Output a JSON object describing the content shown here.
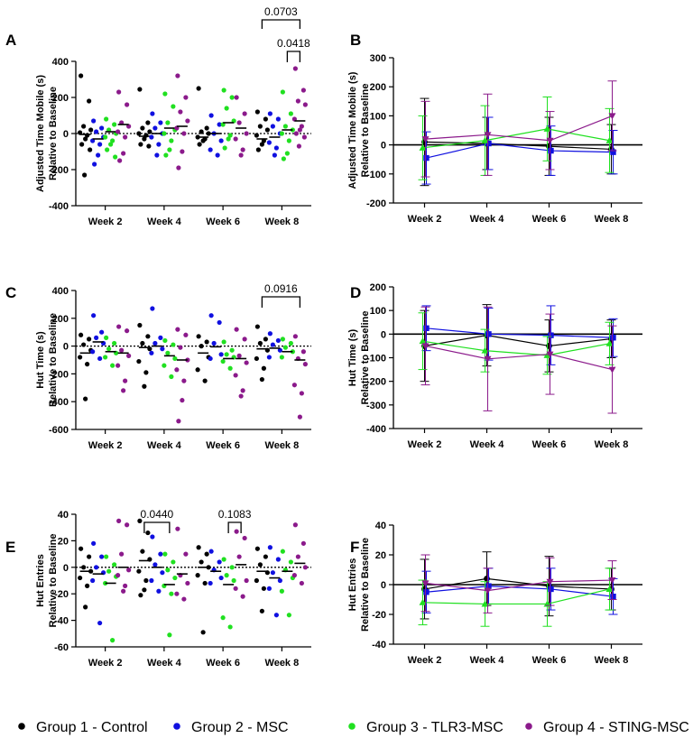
{
  "colors": {
    "group1": "#000000",
    "group2": "#1010e0",
    "group3": "#20e020",
    "group4": "#8b1a8b",
    "text": "#000000"
  },
  "legend": [
    {
      "label": "Group 1 - Control",
      "color_key": "group1"
    },
    {
      "label": "Group 2 - MSC",
      "color_key": "group2"
    },
    {
      "label": "Group 3 - TLR3-MSC",
      "color_key": "group3"
    },
    {
      "label": "Group 4 - STING-MSC",
      "color_key": "group4"
    }
  ],
  "chart_data": [
    {
      "panel": "A",
      "type": "scatter",
      "ylabel": [
        "Adjusted Time Mobile (s)",
        "Relative to Baseline"
      ],
      "categories": [
        "Week 2",
        "Week 4",
        "Week 6",
        "Week 8"
      ],
      "ylim": [
        -400,
        400
      ],
      "yticks": [
        -400,
        -200,
        0,
        200,
        400
      ],
      "zero_line": "dotted",
      "series": [
        {
          "name": "Group 1 - Control",
          "points": [
            [
              320,
              180,
              40,
              20,
              5,
              -10,
              -30,
              -60,
              -90,
              -230
            ],
            [
              245,
              60,
              30,
              10,
              0,
              -10,
              -30,
              -60,
              -70
            ],
            [
              250,
              30,
              10,
              0,
              -20,
              -30,
              -40,
              -60
            ],
            [
              120,
              80,
              40,
              20,
              -10,
              -40,
              -60,
              -90
            ]
          ],
          "means": [
            -5,
            -15,
            -20,
            -30
          ]
        },
        {
          "name": "Group 2 - MSC",
          "points": [
            [
              70,
              30,
              10,
              -20,
              -40,
              -60,
              -120,
              -170
            ],
            [
              110,
              60,
              30,
              0,
              -20,
              -60,
              -120
            ],
            [
              100,
              50,
              0,
              -40,
              -90,
              -120
            ],
            [
              110,
              80,
              40,
              0,
              -50,
              -80,
              -120
            ]
          ],
          "means": [
            -30,
            0,
            0,
            -20
          ]
        },
        {
          "name": "Group 3 - TLR3-MSC",
          "points": [
            [
              80,
              50,
              20,
              0,
              -20,
              -40,
              -60,
              -90,
              -130
            ],
            [
              220,
              150,
              60,
              20,
              0,
              -40,
              -90,
              -120
            ],
            [
              240,
              200,
              140,
              70,
              50,
              -10,
              -30,
              -80
            ],
            [
              230,
              110,
              40,
              20,
              0,
              -40,
              -110,
              -140
            ]
          ],
          "means": [
            10,
            30,
            60,
            20
          ]
        },
        {
          "name": "Group 4 - STING-MSC",
          "points": [
            [
              230,
              160,
              60,
              40,
              10,
              -20,
              -110,
              -150
            ],
            [
              320,
              200,
              120,
              70,
              30,
              0,
              -100,
              -190
            ],
            [
              200,
              110,
              60,
              0,
              -30,
              -90,
              -120
            ],
            [
              360,
              240,
              180,
              160,
              80,
              40,
              20,
              0,
              -20,
              -70
            ]
          ],
          "means": [
            50,
            40,
            30,
            70
          ]
        }
      ],
      "brackets": [
        {
          "label": "0.0703",
          "from_group": 1,
          "to_group": 4,
          "category": "Week 8"
        },
        {
          "label": "0.0418",
          "from_group": 3,
          "to_group": 4,
          "category": "Week 8"
        }
      ]
    },
    {
      "panel": "B",
      "type": "line",
      "ylabel": [
        "Adjusted Time Mobile (s)",
        "Relative to Baseline"
      ],
      "categories": [
        "Week 2",
        "Week 4",
        "Week 6",
        "Week 8"
      ],
      "ylim": [
        -200,
        300
      ],
      "yticks": [
        -200,
        -100,
        0,
        100,
        200,
        300
      ],
      "series": [
        {
          "name": "Group 1 - Control",
          "values": [
            10,
            5,
            -5,
            -15
          ],
          "err": [
            150,
            90,
            100,
            85
          ]
        },
        {
          "name": "Group 2 - MSC",
          "values": [
            -45,
            5,
            -20,
            -25
          ],
          "err": [
            90,
            90,
            85,
            75
          ]
        },
        {
          "name": "Group 3 - TLR3-MSC",
          "values": [
            -10,
            15,
            55,
            15
          ],
          "err": [
            110,
            120,
            110,
            110
          ]
        },
        {
          "name": "Group 4 - STING-MSC",
          "values": [
            20,
            35,
            15,
            100
          ],
          "err": [
            130,
            140,
            100,
            120
          ]
        }
      ]
    },
    {
      "panel": "C",
      "type": "scatter",
      "ylabel": [
        "Hut Time (s)",
        "Relative to Baseline"
      ],
      "categories": [
        "Week 2",
        "Week 4",
        "Week 6",
        "Week 8"
      ],
      "ylim": [
        -600,
        400
      ],
      "yticks": [
        -600,
        -400,
        -200,
        0,
        200,
        400
      ],
      "zero_line": "dotted",
      "series": [
        {
          "name": "Group 1 - Control",
          "points": [
            [
              80,
              50,
              10,
              -30,
              -80,
              -130,
              -380
            ],
            [
              150,
              70,
              20,
              -20,
              -110,
              -190,
              -290
            ],
            [
              70,
              30,
              0,
              -80,
              -170,
              -250
            ],
            [
              140,
              50,
              20,
              -30,
              -90,
              -160,
              -240
            ]
          ],
          "means": [
            -50,
            -10,
            -50,
            -20
          ]
        },
        {
          "name": "Group 2 - MSC",
          "points": [
            [
              220,
              100,
              60,
              20,
              -40,
              -90
            ],
            [
              270,
              60,
              20,
              -20,
              -50
            ],
            [
              220,
              170,
              20,
              -60,
              -90
            ],
            [
              90,
              40,
              10,
              -30,
              -80
            ]
          ],
          "means": [
            30,
            0,
            -5,
            -15
          ]
        },
        {
          "name": "Group 3 - TLR3-MSC",
          "points": [
            [
              60,
              20,
              -20,
              -50,
              -80,
              -140
            ],
            [
              40,
              10,
              -50,
              -90,
              -140,
              -220
            ],
            [
              30,
              -30,
              -60,
              -80,
              -110,
              -160
            ],
            [
              50,
              20,
              -10,
              -40,
              -80
            ]
          ],
          "means": [
            -40,
            -70,
            -90,
            -40
          ]
        },
        {
          "name": "Group 4 - STING-MSC",
          "points": [
            [
              140,
              110,
              -30,
              -70,
              -140,
              -250,
              -320
            ],
            [
              120,
              80,
              -10,
              -100,
              -170,
              -250,
              -390,
              -540
            ],
            [
              120,
              50,
              -70,
              -120,
              -210,
              -320,
              -360
            ],
            [
              70,
              -40,
              -90,
              -130,
              -280,
              -340,
              -510
            ]
          ],
          "means": [
            -50,
            -100,
            -90,
            -100
          ]
        }
      ],
      "brackets": [
        {
          "label": "0.0916",
          "from_group": 1,
          "to_group": 4,
          "category": "Week 8"
        }
      ]
    },
    {
      "panel": "D",
      "type": "line",
      "ylabel": [
        "Hut Time (s)",
        "Relative to Baseline"
      ],
      "categories": [
        "Week 2",
        "Week 4",
        "Week 6",
        "Week 8"
      ],
      "ylim": [
        -400,
        200
      ],
      "yticks": [
        -400,
        -300,
        -200,
        -100,
        0,
        100,
        200
      ],
      "series": [
        {
          "name": "Group 1 - Control",
          "values": [
            -50,
            -5,
            -50,
            -20
          ],
          "err": [
            150,
            130,
            110,
            80
          ]
        },
        {
          "name": "Group 2 - MSC",
          "values": [
            25,
            0,
            -5,
            -15
          ],
          "err": [
            95,
            110,
            125,
            80
          ]
        },
        {
          "name": "Group 3 - TLR3-MSC",
          "values": [
            -30,
            -70,
            -90,
            -40
          ],
          "err": [
            120,
            90,
            80,
            90
          ]
        },
        {
          "name": "Group 4 - STING-MSC",
          "values": [
            -50,
            -105,
            -85,
            -150
          ],
          "err": [
            165,
            220,
            170,
            185
          ]
        }
      ]
    },
    {
      "panel": "E",
      "type": "scatter",
      "ylabel": [
        "Hut Entries",
        "Relative to Baseline"
      ],
      "categories": [
        "Week 2",
        "Week 4",
        "Week 6",
        "Week 8"
      ],
      "ylim": [
        -60,
        40
      ],
      "yticks": [
        -60,
        -40,
        -20,
        0,
        20,
        40
      ],
      "zero_line": "dotted",
      "series": [
        {
          "name": "Group 1 - Control",
          "points": [
            [
              14,
              8,
              0,
              -3,
              -8,
              -14,
              -30
            ],
            [
              35,
              26,
              12,
              6,
              -3,
              -10,
              -17,
              -21
            ],
            [
              15,
              10,
              4,
              0,
              -6,
              -12,
              -49
            ],
            [
              14,
              8,
              2,
              -4,
              -10,
              -16,
              -33
            ]
          ],
          "means": [
            -3,
            5,
            0,
            -3
          ]
        },
        {
          "name": "Group 2 - MSC",
          "points": [
            [
              18,
              8,
              0,
              -4,
              -10,
              -42
            ],
            [
              23,
              10,
              2,
              -4,
              -10,
              -18
            ],
            [
              12,
              4,
              -2,
              -8,
              -12
            ],
            [
              15,
              6,
              -4,
              -10,
              -16,
              -36
            ]
          ],
          "means": [
            -5,
            0,
            -3,
            -8
          ]
        },
        {
          "name": "Group 3 - TLR3-MSC",
          "points": [
            [
              8,
              2,
              -3,
              -7,
              -12,
              -55
            ],
            [
              10,
              4,
              -2,
              -8,
              -14,
              -20,
              -51
            ],
            [
              6,
              0,
              -6,
              -10,
              -38,
              -45
            ],
            [
              12,
              4,
              -2,
              -8,
              -18,
              -36
            ]
          ],
          "means": [
            -12,
            -13,
            -13,
            -3
          ]
        },
        {
          "name": "Group 4 - STING-MSC",
          "points": [
            [
              35,
              32,
              10,
              -2,
              -6,
              -14,
              -18
            ],
            [
              29,
              10,
              -6,
              -12,
              -20,
              -24
            ],
            [
              27,
              22,
              8,
              -10,
              -16,
              -22
            ],
            [
              32,
              18,
              8,
              0,
              -6,
              -12
            ]
          ],
          "means": [
            0,
            -5,
            2,
            3
          ]
        }
      ],
      "brackets": [
        {
          "label": "0.0440",
          "from_group": 1,
          "to_group": 3,
          "category": "Week 4"
        },
        {
          "label": "0.1083",
          "from_group": 3,
          "to_group": 4,
          "category": "Week 6"
        }
      ]
    },
    {
      "panel": "F",
      "type": "line",
      "ylabel": [
        "Hut Entries",
        "Relative to Baseline"
      ],
      "categories": [
        "Week 2",
        "Week 4",
        "Week 6",
        "Week 8"
      ],
      "ylim": [
        -40,
        40
      ],
      "yticks": [
        -40,
        -20,
        0,
        20,
        40
      ],
      "series": [
        {
          "name": "Group 1 - Control",
          "values": [
            -3,
            4,
            -1,
            -3
          ],
          "err": [
            20,
            18,
            20,
            14
          ]
        },
        {
          "name": "Group 2 - MSC",
          "values": [
            -5,
            -1,
            -3,
            -8
          ],
          "err": [
            14,
            12,
            14,
            12
          ]
        },
        {
          "name": "Group 3 - TLR3-MSC",
          "values": [
            -12,
            -13,
            -13,
            -3
          ],
          "err": [
            15,
            15,
            15,
            14
          ]
        },
        {
          "name": "Group 4 - STING-MSC",
          "values": [
            1,
            -4,
            2,
            3
          ],
          "err": [
            19,
            15,
            16,
            13
          ]
        }
      ]
    }
  ]
}
